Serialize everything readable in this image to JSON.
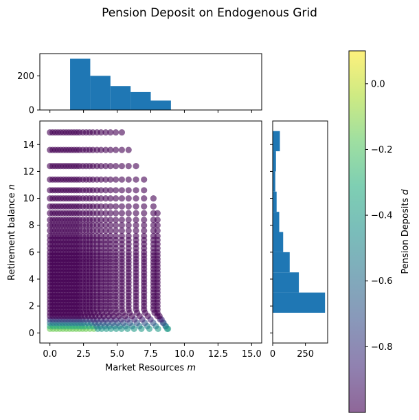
{
  "chart_data": {
    "type": "scatter",
    "title": "Pension Deposit on Endogenous Grid",
    "xlabel": "Market Resources m",
    "ylabel": "Retirement balance n",
    "colorbar_label": "Pension Deposits d",
    "xlim": [
      -0.75,
      15.75
    ],
    "ylim": [
      -0.75,
      15.75
    ],
    "xticks": [
      "0.0",
      "2.5",
      "5.0",
      "7.5",
      "10.0",
      "12.5",
      "15.0"
    ],
    "yticks": [
      "0",
      "2",
      "4",
      "6",
      "8",
      "10",
      "12",
      "14"
    ],
    "colormap": "viridis",
    "point_alpha": 0.6,
    "clim": [
      -1.0,
      0.1
    ],
    "colorbar_ticks": [
      "−0.8",
      "−0.6",
      "−0.4",
      "−0.2",
      "0.0"
    ],
    "n_levels": [
      0.3,
      0.5,
      0.75,
      1.0,
      1.25,
      1.5,
      1.75,
      2.0,
      2.25,
      2.5,
      2.75,
      3.0,
      3.25,
      3.5,
      3.75,
      4.0,
      4.25,
      4.5,
      4.75,
      5.0,
      5.25,
      5.5,
      5.75,
      6.0,
      6.3,
      6.6,
      6.9,
      7.2,
      7.6,
      8.0,
      8.4,
      8.9,
      9.4,
      10.0,
      10.6,
      11.4,
      12.4,
      13.6,
      14.9
    ],
    "m_columns": [
      0.0,
      0.2,
      0.4,
      0.6,
      0.8,
      1.0,
      1.2,
      1.4,
      1.6,
      1.8,
      2.0,
      2.2,
      2.45,
      2.7,
      2.95,
      3.2,
      3.5,
      3.8,
      4.15,
      4.5,
      4.9,
      5.35,
      5.85,
      6.4,
      7.0,
      7.7,
      8.0
    ],
    "top_histogram": {
      "bin_edges": [
        1.5,
        3.0,
        4.5,
        6.0,
        7.5,
        9.0
      ],
      "counts": [
        300,
        200,
        140,
        105,
        55
      ],
      "yticks": [
        "0",
        "200"
      ],
      "ylim": [
        0,
        330
      ]
    },
    "right_histogram": {
      "bin_edges": [
        1.5,
        3.0,
        4.5,
        6.0,
        7.5,
        9.0,
        10.5,
        12.0,
        13.5,
        15.0
      ],
      "counts": [
        400,
        200,
        130,
        80,
        50,
        30,
        20,
        25,
        55
      ],
      "xticks": [
        "0",
        "250"
      ],
      "xlim": [
        0,
        420
      ]
    },
    "histogram_color": "#1f77b4"
  }
}
